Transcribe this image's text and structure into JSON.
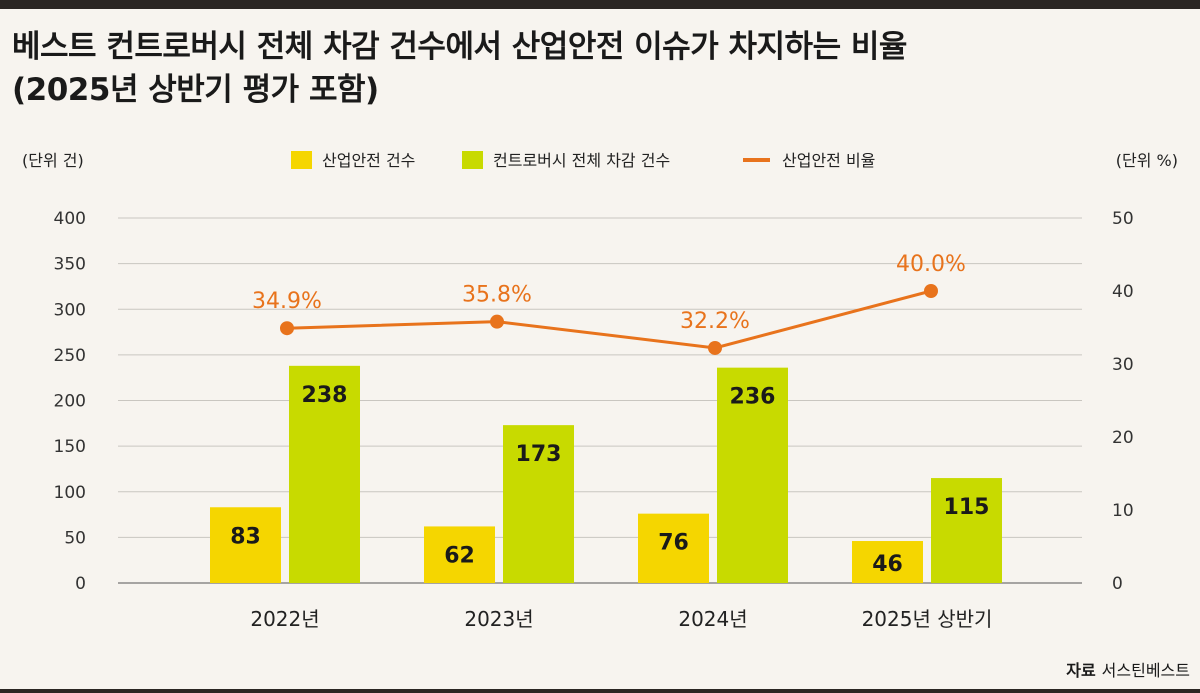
{
  "title": {
    "line1": "베스트 컨트로버시 전체 차감 건수에서 산업안전 이슈가 차지하는 비율",
    "line2": "(2025년 상반기 평가 포함)"
  },
  "axis_units": {
    "left": "(단위 건)",
    "right": "(단위 %)"
  },
  "legend": {
    "bar1": "산업안전 건수",
    "bar2": "컨트로버시 전체 차감 건수",
    "line": "산업안전 비율"
  },
  "colors": {
    "bar1": "#f5d600",
    "bar2": "#c8da00",
    "line": "#e8731c"
  },
  "source": {
    "label": "자료",
    "value": "서스틴베스트"
  },
  "chart_data": {
    "type": "bar",
    "categories": [
      "2022년",
      "2023년",
      "2024년",
      "2025년 상반기"
    ],
    "series": [
      {
        "name": "산업안전 건수",
        "type": "bar",
        "axis": "left",
        "values": [
          83,
          62,
          76,
          46
        ]
      },
      {
        "name": "컨트로버시 전체 차감 건수",
        "type": "bar",
        "axis": "left",
        "values": [
          238,
          173,
          236,
          115
        ]
      },
      {
        "name": "산업안전 비율",
        "type": "line",
        "axis": "right",
        "values": [
          34.9,
          35.8,
          32.2,
          40.0
        ],
        "labels": [
          "34.9%",
          "35.8%",
          "32.2%",
          "40.0%"
        ]
      }
    ],
    "ylim_left": [
      0,
      400
    ],
    "yticks_left": [
      "0",
      "50",
      "100",
      "150",
      "200",
      "250",
      "300",
      "350",
      "400"
    ],
    "ylim_right": [
      0,
      50
    ],
    "yticks_right": [
      "0",
      "10",
      "20",
      "30",
      "40",
      "50"
    ],
    "grid": true,
    "legend_position": "top-center"
  }
}
